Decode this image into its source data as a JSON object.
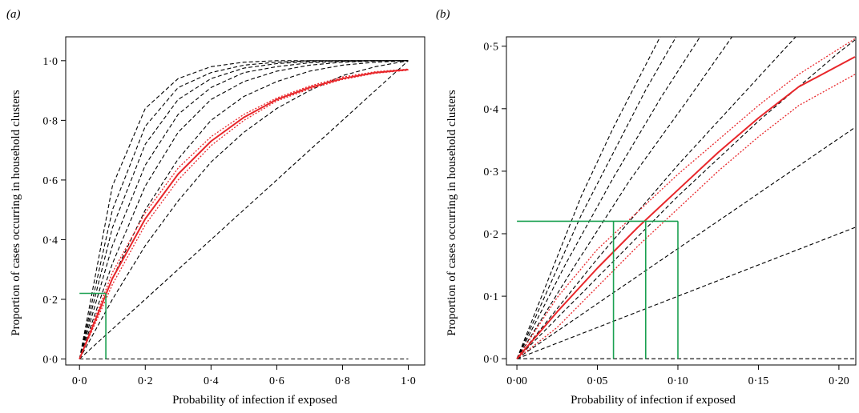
{
  "chart_data": [
    {
      "type": "line",
      "panel_label": "(a)",
      "xlabel": "Probability of infection if exposed",
      "ylabel": "Proportion of cases occurring in household clusters",
      "xlim": [
        0,
        1.0
      ],
      "ylim": [
        0,
        1.0
      ],
      "x_ticks": [
        0,
        0.2,
        0.4,
        0.6,
        0.8,
        1.0
      ],
      "x_tick_labels": [
        "0·0",
        "0·2",
        "0·4",
        "0·6",
        "0·8",
        "1·0"
      ],
      "y_ticks": [
        0,
        0.2,
        0.4,
        0.6,
        0.8,
        1.0
      ],
      "y_tick_labels": [
        "0·0",
        "0·2",
        "0·4",
        "0·6",
        "0·8",
        "1·0"
      ],
      "grid": false,
      "series": [
        {
          "style": "dashed",
          "color": "#000000",
          "x": [
            0,
            0.1,
            0.2,
            0.3,
            0.4,
            0.5,
            0.6,
            0.7,
            0.8,
            0.9,
            1.0
          ],
          "y": [
            0,
            0.58,
            0.84,
            0.94,
            0.98,
            0.995,
            1.0,
            1.0,
            1.0,
            1.0,
            1.0
          ]
        },
        {
          "style": "dashed",
          "color": "#000000",
          "x": [
            0,
            0.1,
            0.2,
            0.3,
            0.4,
            0.5,
            0.6,
            0.7,
            0.8,
            0.9,
            1.0
          ],
          "y": [
            0,
            0.5,
            0.78,
            0.91,
            0.96,
            0.985,
            0.995,
            1.0,
            1.0,
            1.0,
            1.0
          ]
        },
        {
          "style": "dashed",
          "color": "#000000",
          "x": [
            0,
            0.1,
            0.2,
            0.3,
            0.4,
            0.5,
            0.6,
            0.7,
            0.8,
            0.9,
            1.0
          ],
          "y": [
            0,
            0.44,
            0.72,
            0.87,
            0.94,
            0.975,
            0.99,
            0.997,
            1.0,
            1.0,
            1.0
          ]
        },
        {
          "style": "dashed",
          "color": "#000000",
          "x": [
            0,
            0.1,
            0.2,
            0.3,
            0.4,
            0.5,
            0.6,
            0.7,
            0.8,
            0.9,
            1.0
          ],
          "y": [
            0,
            0.38,
            0.65,
            0.82,
            0.91,
            0.96,
            0.98,
            0.993,
            0.998,
            1.0,
            1.0
          ]
        },
        {
          "style": "dashed",
          "color": "#000000",
          "x": [
            0,
            0.1,
            0.2,
            0.3,
            0.4,
            0.5,
            0.6,
            0.7,
            0.8,
            0.9,
            1.0
          ],
          "y": [
            0,
            0.32,
            0.58,
            0.76,
            0.87,
            0.93,
            0.965,
            0.985,
            0.995,
            0.999,
            1.0
          ]
        },
        {
          "style": "dashed",
          "color": "#000000",
          "x": [
            0,
            0.1,
            0.2,
            0.3,
            0.4,
            0.5,
            0.6,
            0.7,
            0.8,
            0.9,
            1.0
          ],
          "y": [
            0,
            0.27,
            0.5,
            0.67,
            0.8,
            0.88,
            0.93,
            0.965,
            0.985,
            0.995,
            1.0
          ]
        },
        {
          "style": "dashed",
          "color": "#000000",
          "x": [
            0,
            0.1,
            0.2,
            0.3,
            0.4,
            0.5,
            0.6,
            0.7,
            0.8,
            0.9,
            1.0
          ],
          "y": [
            0,
            0.2,
            0.38,
            0.53,
            0.66,
            0.76,
            0.84,
            0.9,
            0.95,
            0.98,
            1.0
          ]
        },
        {
          "style": "dashed",
          "color": "#000000",
          "x": [
            0,
            1.0
          ],
          "y": [
            0,
            1.0
          ]
        },
        {
          "style": "dashed",
          "color": "#000000",
          "x": [
            0,
            1.0
          ],
          "y": [
            0,
            0
          ]
        },
        {
          "style": "solid",
          "color": "#e8262a",
          "x": [
            0,
            0.1,
            0.2,
            0.3,
            0.4,
            0.5,
            0.6,
            0.7,
            0.8,
            0.9,
            1.0
          ],
          "y": [
            0,
            0.27,
            0.47,
            0.62,
            0.73,
            0.81,
            0.87,
            0.91,
            0.94,
            0.96,
            0.97
          ]
        },
        {
          "style": "dotted",
          "color": "#e8262a",
          "x": [
            0,
            0.1,
            0.2,
            0.3,
            0.4,
            0.5,
            0.6,
            0.7,
            0.8,
            0.9,
            1.0
          ],
          "y": [
            0,
            0.29,
            0.49,
            0.64,
            0.745,
            0.82,
            0.875,
            0.915,
            0.945,
            0.963,
            0.972
          ]
        },
        {
          "style": "dotted",
          "color": "#e8262a",
          "x": [
            0,
            0.1,
            0.2,
            0.3,
            0.4,
            0.5,
            0.6,
            0.7,
            0.8,
            0.9,
            1.0
          ],
          "y": [
            0,
            0.25,
            0.45,
            0.6,
            0.715,
            0.8,
            0.865,
            0.905,
            0.937,
            0.958,
            0.968
          ]
        },
        {
          "style": "solid",
          "color": "#1aa050",
          "x": [
            0,
            0.08
          ],
          "y": [
            0.22,
            0.22
          ]
        },
        {
          "style": "solid",
          "color": "#1aa050",
          "x": [
            0.08,
            0.08
          ],
          "y": [
            0,
            0.22
          ]
        }
      ]
    },
    {
      "type": "line",
      "panel_label": "(b)",
      "xlabel": "Probability of infection if exposed",
      "ylabel": "Proportion of cases occurring in household clusters",
      "xlim": [
        0,
        0.2
      ],
      "ylim": [
        0,
        0.5
      ],
      "x_ticks": [
        0,
        0.05,
        0.1,
        0.15,
        0.2
      ],
      "x_tick_labels": [
        "0·00",
        "0·05",
        "0·10",
        "0·15",
        "0·20"
      ],
      "y_ticks": [
        0,
        0.1,
        0.2,
        0.3,
        0.4,
        0.5
      ],
      "y_tick_labels": [
        "0·0",
        "0·1",
        "0·2",
        "0·3",
        "0·4",
        "0·5"
      ],
      "grid": false,
      "series": [
        {
          "style": "dashed",
          "color": "#000000",
          "x": [
            0,
            0.02,
            0.04,
            0.06,
            0.08,
            0.09
          ],
          "y": [
            0,
            0.13,
            0.26,
            0.37,
            0.47,
            0.52
          ]
        },
        {
          "style": "dashed",
          "color": "#000000",
          "x": [
            0,
            0.02,
            0.04,
            0.06,
            0.08,
            0.1
          ],
          "y": [
            0,
            0.115,
            0.23,
            0.33,
            0.43,
            0.52
          ]
        },
        {
          "style": "dashed",
          "color": "#000000",
          "x": [
            0,
            0.03,
            0.06,
            0.09,
            0.115
          ],
          "y": [
            0,
            0.15,
            0.29,
            0.42,
            0.52
          ]
        },
        {
          "style": "dashed",
          "color": "#000000",
          "x": [
            0,
            0.035,
            0.07,
            0.105,
            0.135
          ],
          "y": [
            0,
            0.145,
            0.285,
            0.41,
            0.52
          ]
        },
        {
          "style": "dashed",
          "color": "#000000",
          "x": [
            0,
            0.05,
            0.1,
            0.15,
            0.175
          ],
          "y": [
            0,
            0.16,
            0.31,
            0.45,
            0.52
          ]
        },
        {
          "style": "dashed",
          "color": "#000000",
          "x": [
            0,
            0.05,
            0.1,
            0.15,
            0.2,
            0.21
          ],
          "y": [
            0,
            0.13,
            0.26,
            0.38,
            0.49,
            0.51
          ]
        },
        {
          "style": "dashed",
          "color": "#000000",
          "x": [
            0,
            0.21
          ],
          "y": [
            0,
            0.37
          ]
        },
        {
          "style": "dashed",
          "color": "#000000",
          "x": [
            0,
            0.21
          ],
          "y": [
            0,
            0.21
          ]
        },
        {
          "style": "dashed",
          "color": "#000000",
          "x": [
            0,
            0.21
          ],
          "y": [
            0,
            0
          ]
        },
        {
          "style": "solid",
          "color": "#e8262a",
          "x": [
            0,
            0.025,
            0.05,
            0.075,
            0.1,
            0.125,
            0.15,
            0.175,
            0.21
          ],
          "y": [
            0,
            0.075,
            0.145,
            0.21,
            0.27,
            0.33,
            0.385,
            0.435,
            0.483
          ]
        },
        {
          "style": "dotted",
          "color": "#e8262a",
          "x": [
            0,
            0.025,
            0.05,
            0.075,
            0.1,
            0.125,
            0.15,
            0.175,
            0.21
          ],
          "y": [
            0,
            0.098,
            0.175,
            0.235,
            0.295,
            0.35,
            0.405,
            0.455,
            0.512
          ]
        },
        {
          "style": "dotted",
          "color": "#e8262a",
          "x": [
            0,
            0.025,
            0.05,
            0.075,
            0.1,
            0.125,
            0.15,
            0.175,
            0.21
          ],
          "y": [
            0,
            0.05,
            0.115,
            0.18,
            0.24,
            0.3,
            0.355,
            0.405,
            0.455
          ]
        },
        {
          "style": "solid",
          "color": "#1aa050",
          "x": [
            0,
            0.1
          ],
          "y": [
            0.22,
            0.22
          ]
        },
        {
          "style": "solid",
          "color": "#1aa050",
          "x": [
            0.06,
            0.06
          ],
          "y": [
            0,
            0.22
          ]
        },
        {
          "style": "solid",
          "color": "#1aa050",
          "x": [
            0.08,
            0.08
          ],
          "y": [
            0,
            0.22
          ]
        },
        {
          "style": "solid",
          "color": "#1aa050",
          "x": [
            0.1,
            0.1
          ],
          "y": [
            0,
            0.22
          ]
        }
      ]
    }
  ]
}
